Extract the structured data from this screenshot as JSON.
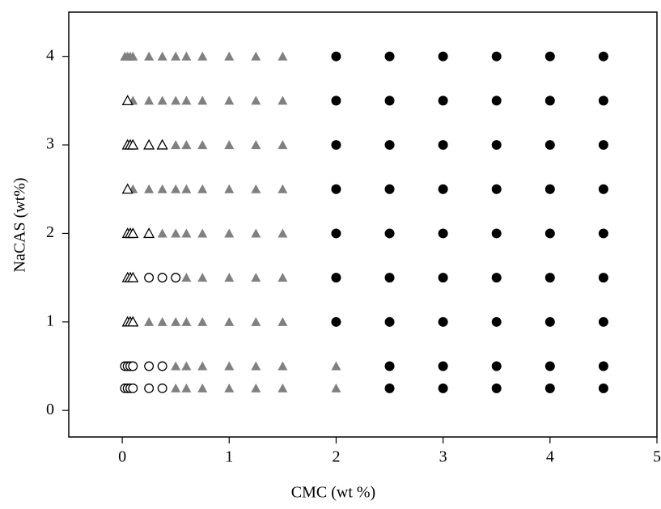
{
  "chart_data": {
    "type": "scatter",
    "x_label": "CMC (wt %)",
    "y_label": "NaCAS (wt%)",
    "xlim": [
      -0.5,
      5
    ],
    "ylim": [
      -0.3,
      4.5
    ],
    "xticks": [
      0,
      1,
      2,
      3,
      4,
      5
    ],
    "yticks": [
      0,
      1,
      2,
      3,
      4
    ],
    "series": [
      {
        "marker": "triangle",
        "color": "#808080",
        "filled": true,
        "x": [
          0.025,
          0.05,
          0.075,
          0.1,
          0.25,
          0.375,
          0.5,
          0.6,
          0.75,
          1,
          1.25,
          1.5,
          0.1,
          0.25,
          0.375,
          0.5,
          0.6,
          0.75,
          1,
          1.25,
          1.5,
          0.5,
          0.6,
          0.75,
          1,
          1.25,
          1.5,
          0.1,
          0.25,
          0.375,
          0.5,
          0.6,
          0.75,
          1,
          1.25,
          1.5,
          0.375,
          0.5,
          0.6,
          0.75,
          1,
          1.25,
          1.5,
          0.6,
          0.75,
          1,
          1.25,
          1.5,
          0.25,
          0.375,
          0.5,
          0.6,
          0.75,
          1,
          1.25,
          1.5,
          0.5,
          0.6,
          0.75,
          1,
          1.25,
          1.5,
          2,
          0.5,
          0.6,
          0.75,
          1,
          1.25,
          1.5,
          2
        ],
        "y": [
          4,
          4,
          4,
          4,
          4,
          4,
          4,
          4,
          4,
          4,
          4,
          4,
          3.5,
          3.5,
          3.5,
          3.5,
          3.5,
          3.5,
          3.5,
          3.5,
          3.5,
          3,
          3,
          3,
          3,
          3,
          3,
          2.5,
          2.5,
          2.5,
          2.5,
          2.5,
          2.5,
          2.5,
          2.5,
          2.5,
          2,
          2,
          2,
          2,
          2,
          2,
          2,
          1.5,
          1.5,
          1.5,
          1.5,
          1.5,
          1,
          1,
          1,
          1,
          1,
          1,
          1,
          1,
          0.5,
          0.5,
          0.5,
          0.5,
          0.5,
          0.5,
          0.5,
          0.25,
          0.25,
          0.25,
          0.25,
          0.25,
          0.25,
          0.25
        ]
      },
      {
        "marker": "triangle",
        "color": "#000000",
        "filled": false,
        "x": [
          0.05,
          0.05,
          0.075,
          0.1,
          0.25,
          0.375,
          0.05,
          0.05,
          0.075,
          0.1,
          0.25,
          0.05,
          0.075,
          0.1,
          0.05,
          0.075,
          0.1
        ],
        "y": [
          3.5,
          3,
          3,
          3,
          3,
          3,
          2.5,
          2,
          2,
          2,
          2,
          1.5,
          1.5,
          1.5,
          1,
          1,
          1
        ]
      },
      {
        "marker": "circle",
        "color": "#000000",
        "filled": false,
        "x": [
          0.25,
          0.375,
          0.5,
          0.025,
          0.05,
          0.075,
          0.1,
          0.25,
          0.375,
          0.025,
          0.05,
          0.075,
          0.1,
          0.25,
          0.375
        ],
        "y": [
          1.5,
          1.5,
          1.5,
          0.5,
          0.5,
          0.5,
          0.5,
          0.5,
          0.5,
          0.25,
          0.25,
          0.25,
          0.25,
          0.25,
          0.25
        ]
      },
      {
        "marker": "circle",
        "color": "#000000",
        "filled": true,
        "x": [
          2,
          2.5,
          3,
          3.5,
          4,
          4.5,
          2,
          2.5,
          3,
          3.5,
          4,
          4.5,
          2,
          2.5,
          3,
          3.5,
          4,
          4.5,
          2,
          2.5,
          3,
          3.5,
          4,
          4.5,
          2,
          2.5,
          3,
          3.5,
          4,
          4.5,
          2,
          2.5,
          3,
          3.5,
          4,
          4.5,
          2,
          2.5,
          3,
          3.5,
          4,
          4.5,
          2.5,
          3,
          3.5,
          4,
          4.5,
          2.5,
          3,
          3.5,
          4,
          4.5
        ],
        "y": [
          4,
          4,
          4,
          4,
          4,
          4,
          3.5,
          3.5,
          3.5,
          3.5,
          3.5,
          3.5,
          3,
          3,
          3,
          3,
          3,
          3,
          2.5,
          2.5,
          2.5,
          2.5,
          2.5,
          2.5,
          2,
          2,
          2,
          2,
          2,
          2,
          1.5,
          1.5,
          1.5,
          1.5,
          1.5,
          1.5,
          1,
          1,
          1,
          1,
          1,
          1,
          0.5,
          0.5,
          0.5,
          0.5,
          0.5,
          0.25,
          0.25,
          0.25,
          0.25,
          0.25
        ]
      }
    ]
  }
}
